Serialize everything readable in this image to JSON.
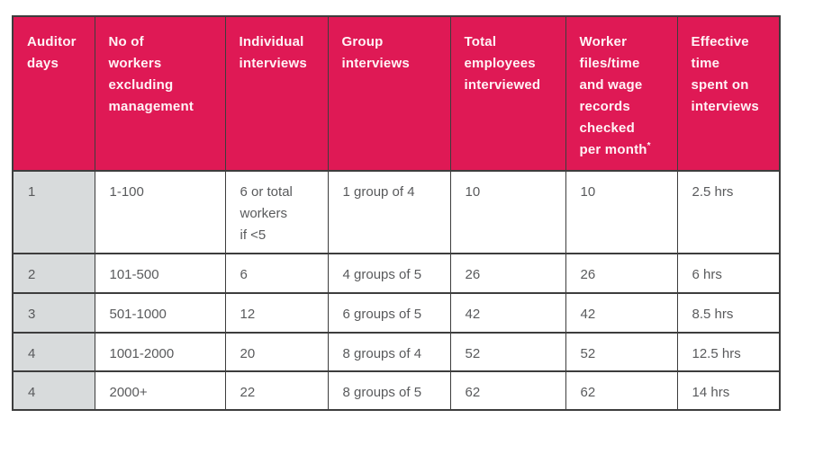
{
  "colors": {
    "header_bg": "#DF1955",
    "header_text": "#FFF3F6",
    "row_label_bg": "#D8DBDC",
    "body_text": "#595A5C",
    "border_color": "#3D3D3D",
    "page_bg": "#FFFFFF"
  },
  "table": {
    "columns": [
      {
        "label": "Auditor\ndays"
      },
      {
        "label": "No of\nworkers\nexcluding\nmanagement"
      },
      {
        "label": "Individual\ninterviews"
      },
      {
        "label": "Group\ninterviews"
      },
      {
        "label": "Total\nemployees\ninterviewed"
      },
      {
        "label": "Worker\nfiles/time\nand wage\nrecords\nchecked\nper month",
        "sup": "*"
      },
      {
        "label": "Effective\ntime\nspent on\ninterviews"
      }
    ],
    "rows": [
      {
        "cells": [
          "1",
          "1-100",
          "6 or total\nworkers\nif <5",
          "1 group of 4",
          "10",
          "10",
          "2.5 hrs"
        ]
      },
      {
        "cells": [
          "2",
          "101-500",
          "6",
          "4 groups of 5",
          "26",
          "26",
          "6 hrs"
        ]
      },
      {
        "cells": [
          "3",
          "501-1000",
          "12",
          "6 groups of 5",
          "42",
          "42",
          "8.5 hrs"
        ]
      },
      {
        "cells": [
          "4",
          "1001-2000",
          "20",
          "8 groups of 4",
          "52",
          "52",
          "12.5 hrs"
        ]
      },
      {
        "cells": [
          "4",
          "2000+",
          "22",
          "8 groups of 5",
          "62",
          "62",
          "14 hrs"
        ]
      }
    ]
  }
}
